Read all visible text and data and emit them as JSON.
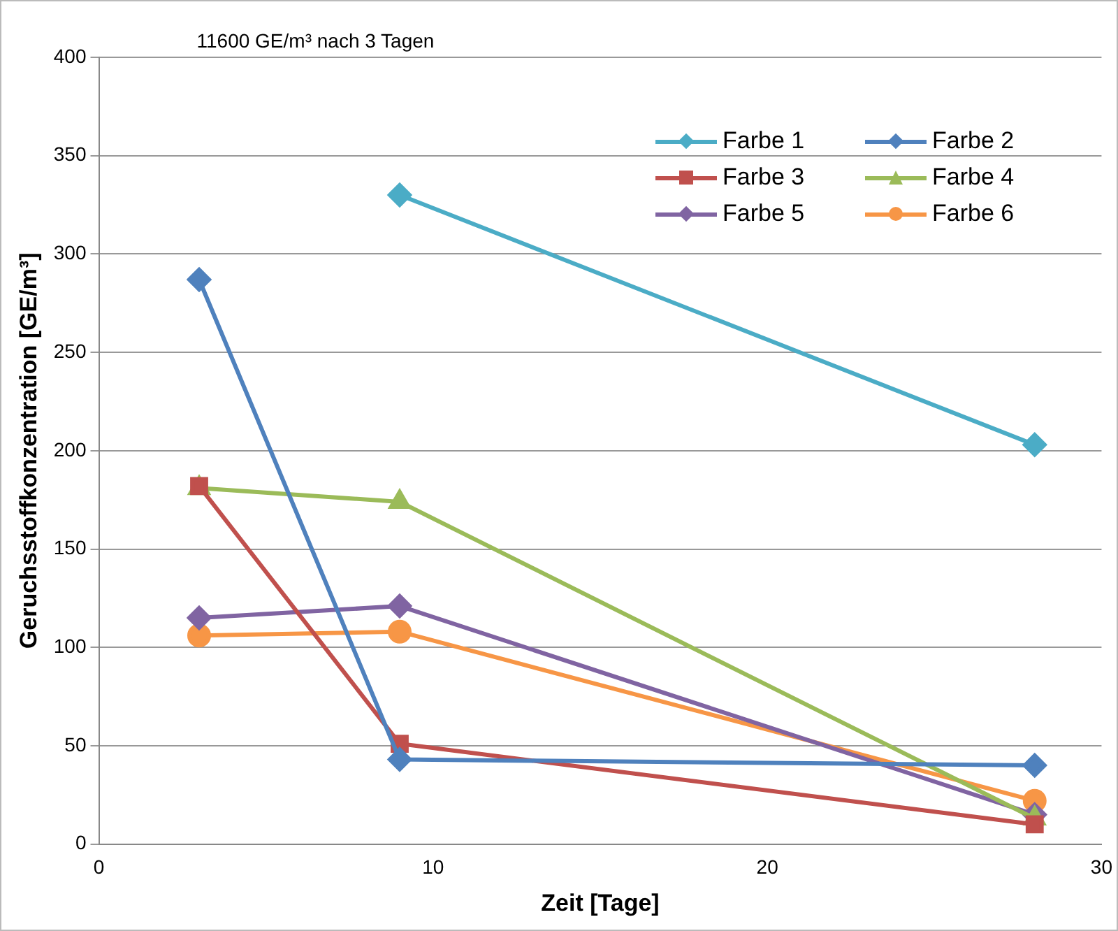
{
  "chart_data": {
    "type": "line",
    "xlabel": "Zeit [Tage]",
    "ylabel": "Geruchsstoffkonzentration [GE/m³]",
    "x": [
      3,
      9,
      28
    ],
    "series": [
      {
        "name": "Farbe 1",
        "color": "#4bacc6",
        "marker": "diamond",
        "values": [
          null,
          330,
          203
        ]
      },
      {
        "name": "Farbe 2",
        "color": "#4f81bd",
        "marker": "diamond",
        "values": [
          287,
          43,
          40
        ]
      },
      {
        "name": "Farbe 3",
        "color": "#c0504d",
        "marker": "square",
        "values": [
          182,
          51,
          10
        ]
      },
      {
        "name": "Farbe 4",
        "color": "#9bbb59",
        "marker": "triangle",
        "values": [
          181,
          174,
          13
        ]
      },
      {
        "name": "Farbe 5",
        "color": "#8064a2",
        "marker": "diamond",
        "values": [
          115,
          121,
          15
        ]
      },
      {
        "name": "Farbe 6",
        "color": "#f79646",
        "marker": "circle",
        "values": [
          106,
          108,
          22
        ]
      }
    ],
    "xlim": [
      0,
      30
    ],
    "xticks": [
      0,
      10,
      20,
      30
    ],
    "ylim": [
      0,
      400
    ],
    "yticks": [
      0,
      50,
      100,
      150,
      200,
      250,
      300,
      350,
      400
    ],
    "grid": "y",
    "legend": "top right",
    "annotations": [
      "11600 GE/m³ nach 3 Tagen"
    ]
  }
}
